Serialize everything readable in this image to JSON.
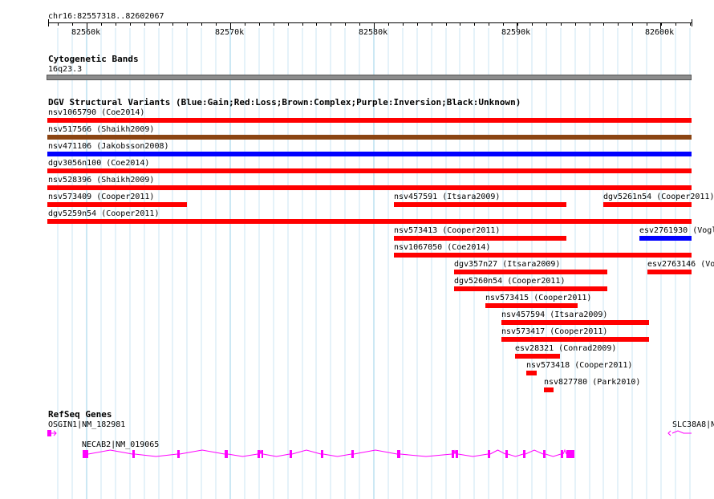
{
  "header": {
    "locus": "chr16:82557318..82602067"
  },
  "ruler": {
    "ticks": [
      "82560k",
      "82570k",
      "82580k",
      "82590k",
      "82600k"
    ]
  },
  "cytoband": {
    "title": "Cytogenetic Bands",
    "band": "16q23.3"
  },
  "dgv": {
    "title": "DGV Structural Variants (Blue:Gain;Red:Loss;Brown:Complex;Purple:Inversion;Black:Unknown)",
    "colors": {
      "loss": "#ff0000",
      "gain": "#0000ff",
      "complex": "#8b4513"
    },
    "variants": [
      {
        "label": "nsv1065790 (Coe2014)",
        "type": "loss"
      },
      {
        "label": "nsv517566 (Shaikh2009)",
        "type": "complex"
      },
      {
        "label": "nsv471106 (Jakobsson2008)",
        "type": "gain"
      },
      {
        "label": "dgv3056n100 (Coe2014)",
        "type": "loss"
      },
      {
        "label": "nsv528396 (Shaikh2009)",
        "type": "loss"
      },
      {
        "label": "nsv573409 (Cooper2011)",
        "type": "loss"
      },
      {
        "label": "nsv457591 (Itsara2009)",
        "type": "loss"
      },
      {
        "label": "dgv5261n54 (Cooper2011)",
        "type": "loss"
      },
      {
        "label": "dgv5259n54 (Cooper2011)",
        "type": "loss"
      },
      {
        "label": "nsv573413 (Cooper2011)",
        "type": "loss"
      },
      {
        "label": "esv2761930 (Vogl",
        "type": "gain"
      },
      {
        "label": "nsv1067050 (Coe2014)",
        "type": "loss"
      },
      {
        "label": "dgv357n27 (Itsara2009)",
        "type": "loss"
      },
      {
        "label": "esv2763146 (Vo",
        "type": "loss"
      },
      {
        "label": "dgv5260n54 (Cooper2011)",
        "type": "loss"
      },
      {
        "label": "nsv573415 (Cooper2011)",
        "type": "loss"
      },
      {
        "label": "nsv457594 (Itsara2009)",
        "type": "loss"
      },
      {
        "label": "nsv573417 (Cooper2011)",
        "type": "loss"
      },
      {
        "label": "esv28321 (Conrad2009)",
        "type": "loss"
      },
      {
        "label": "nsv573418 (Cooper2011)",
        "type": "loss"
      },
      {
        "label": "nsv827780 (Park2010)",
        "type": "loss"
      }
    ]
  },
  "refseq": {
    "title": "RefSeq Genes",
    "gene_color": "#ff00ff",
    "genes": [
      {
        "label": "OSGIN1|NM_182981"
      },
      {
        "label": "SLC38A8|N"
      },
      {
        "label": "NECAB2|NM_019065"
      }
    ]
  }
}
